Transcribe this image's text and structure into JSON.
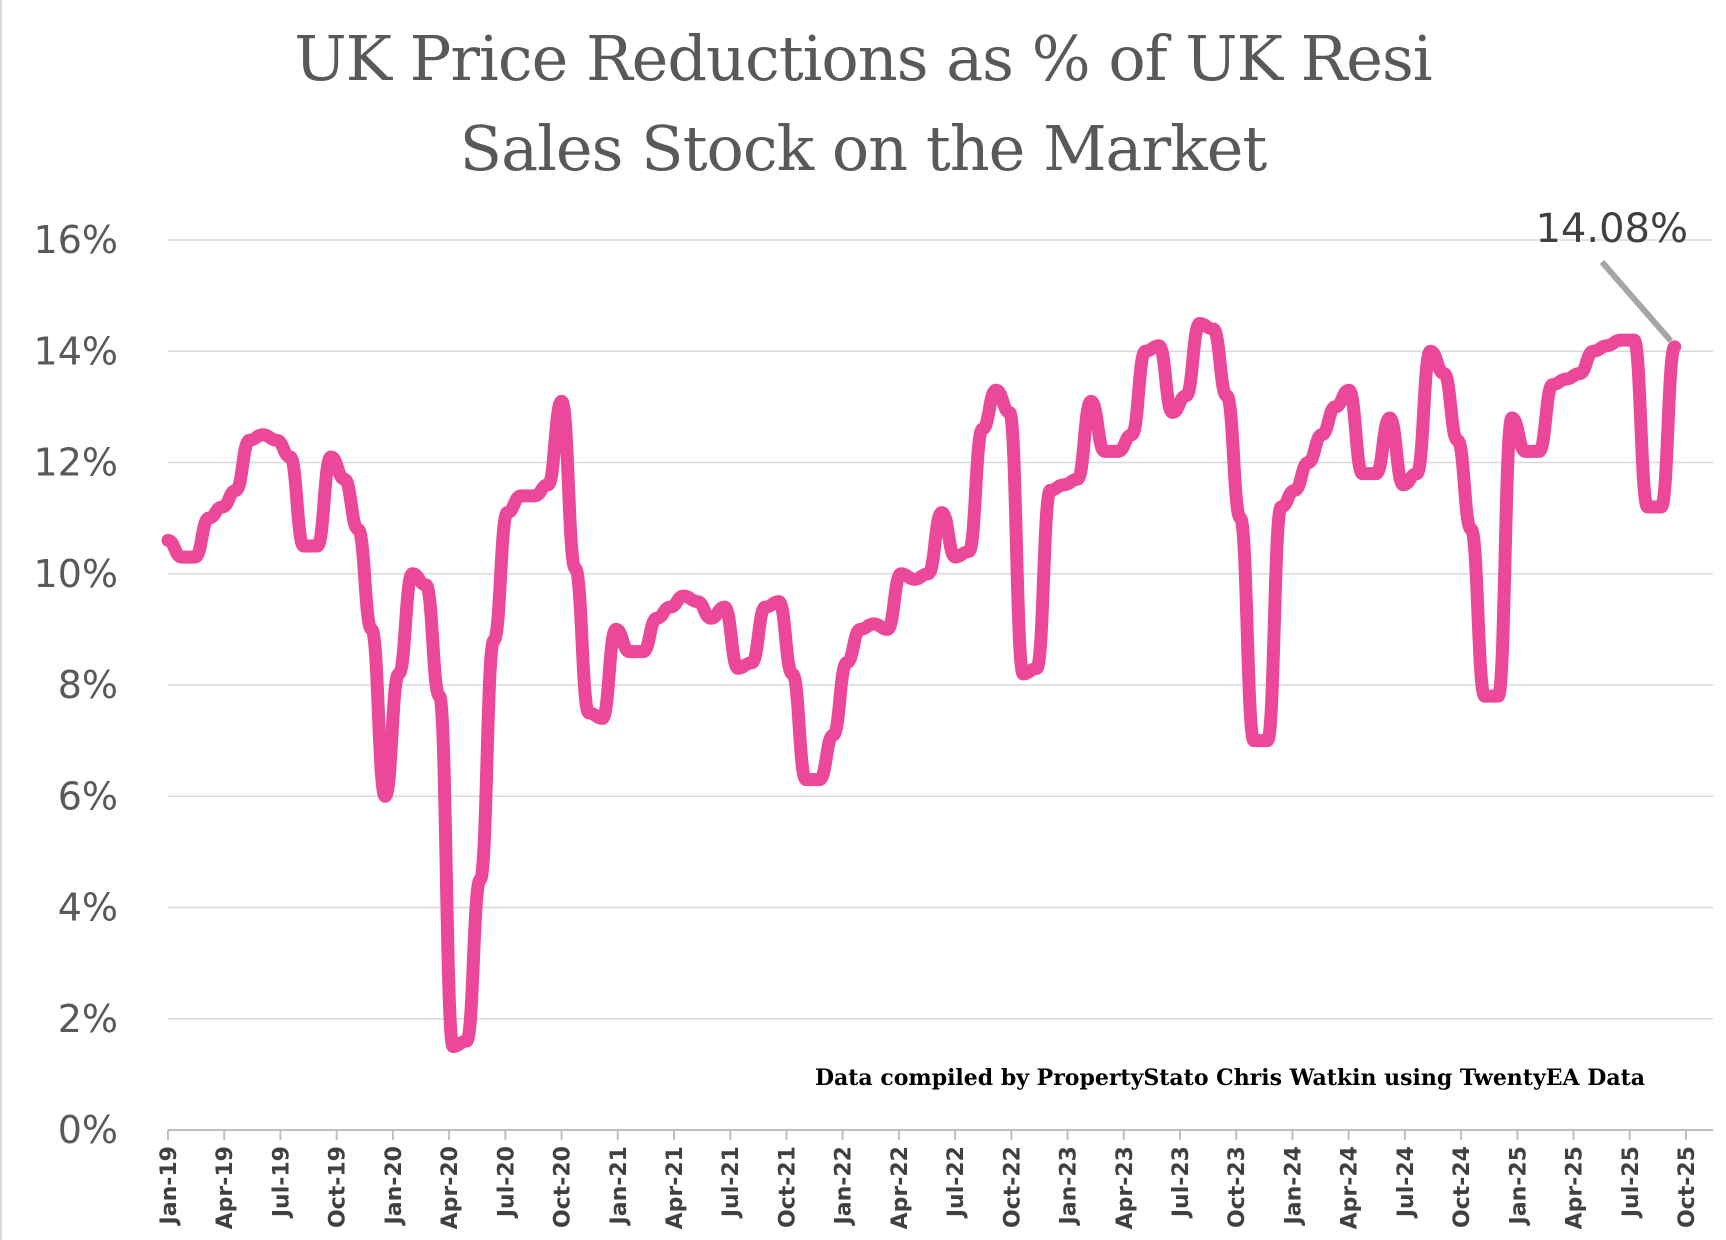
{
  "chart_data": {
    "type": "line",
    "title_lines": [
      "UK Price Reductions as % of UK Resi",
      "Sales Stock on the Market"
    ],
    "xlabel": "",
    "ylabel": "",
    "ylim": [
      0,
      16
    ],
    "yticks": [
      0,
      2,
      4,
      6,
      8,
      10,
      12,
      14,
      16
    ],
    "ytick_labels": [
      "0%",
      "2%",
      "4%",
      "6%",
      "8%",
      "10%",
      "12%",
      "14%",
      "16%"
    ],
    "xtick_labels": [
      "Jan-19",
      "Apr-19",
      "Jul-19",
      "Oct-19",
      "Jan-20",
      "Apr-20",
      "Jul-20",
      "Oct-20",
      "Jan-21",
      "Apr-21",
      "Jul-21",
      "Oct-21",
      "Jan-22",
      "Apr-22",
      "Jul-22",
      "Oct-22",
      "Jan-23",
      "Apr-23",
      "Jul-23",
      "Oct-23",
      "Jan-24",
      "Apr-24",
      "Jul-24",
      "Oct-24",
      "Jan-25",
      "Apr-25",
      "Jul-25",
      "Oct-25"
    ],
    "grid": true,
    "legend": "none",
    "line_color": "#EC4899",
    "series": [
      {
        "values": [
          10.6,
          10.3,
          10.3,
          11.0,
          11.2,
          11.5,
          12.4,
          12.5,
          12.4,
          12.1,
          10.5,
          10.5,
          12.1,
          11.7,
          10.8,
          9.0,
          6.0,
          8.2,
          10.0,
          9.8,
          7.8,
          1.5,
          1.6,
          4.5,
          8.8,
          11.1,
          11.4,
          11.4,
          11.6,
          13.1,
          10.1,
          7.5,
          7.4,
          9.0,
          8.6,
          8.6,
          9.2,
          9.4,
          9.6,
          9.5,
          9.2,
          9.4,
          8.3,
          8.4,
          9.4,
          9.5,
          8.2,
          6.3,
          6.3,
          7.1,
          8.4,
          9.0,
          9.1,
          9.0,
          10.0,
          9.9,
          10.0,
          11.1,
          10.3,
          10.4,
          12.6,
          13.3,
          12.9,
          8.2,
          8.3,
          11.5,
          11.6,
          11.7,
          13.1,
          12.2,
          12.2,
          12.5,
          14.0,
          14.1,
          12.9,
          13.2,
          14.5,
          14.4,
          13.2,
          11.0,
          7.0,
          7.0,
          11.2,
          11.5,
          12.0,
          12.5,
          13.0,
          13.3,
          11.8,
          11.8,
          12.8,
          11.6,
          11.8,
          14.0,
          13.6,
          12.4,
          10.8,
          7.8,
          7.8,
          12.8,
          12.2,
          12.2,
          13.4,
          13.5,
          13.6,
          14.0,
          14.1,
          14.2,
          14.2,
          11.2,
          11.2,
          14.08
        ]
      }
    ],
    "annotation": {
      "label": "14.08%",
      "value": 14.08
    },
    "source_note": "Data compiled by PropertyStato Chris Watkin using TwentyEA Data"
  }
}
